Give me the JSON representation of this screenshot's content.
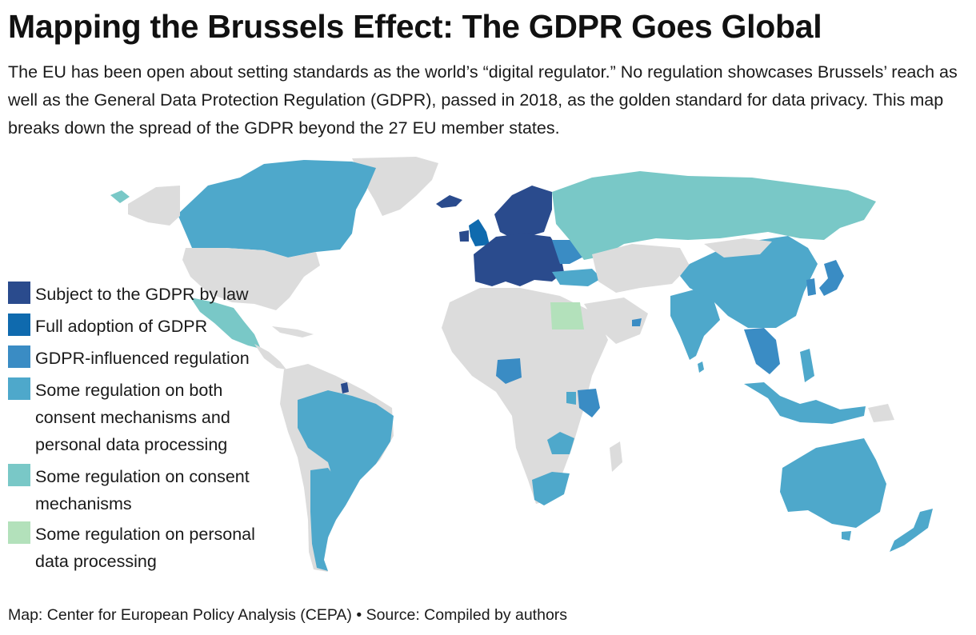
{
  "title": "Mapping the Brussels Effect: The GDPR Goes Global",
  "subtitle": "The EU has been open about setting standards as the world’s “digital regulator.” No regulation showcases Brussels’ reach as well as the General Data Protection Regulation (GDPR), passed in 2018, as the golden standard for data privacy. This map breaks down the spread of the GDPR beyond the 27 EU member states.",
  "colors": {
    "subject_by_law": "#2a4b8d",
    "full_adoption": "#0f6aae",
    "gdpr_influenced": "#3a8cc4",
    "both_consent_processing": "#4ea8cb",
    "consent_mechanisms": "#79c8c7",
    "data_processing": "#b3e1bb",
    "no_data": "#dcdcdc"
  },
  "legend": [
    {
      "label": "Subject to the GDPR by law",
      "color": "#2a4b8d"
    },
    {
      "label": "Full adoption of GDPR",
      "color": "#0f6aae"
    },
    {
      "label": "GDPR-influenced regulation",
      "color": "#3a8cc4"
    },
    {
      "label": "Some regulation on both consent mechanisms and personal data processing",
      "color": "#4ea8cb"
    },
    {
      "label": "Some regulation on consent mechanisms",
      "color": "#79c8c7"
    },
    {
      "label": "Some regulation on personal data processing",
      "color": "#b3e1bb"
    }
  ],
  "footer": "Map: Center for European Policy Analysis (CEPA) • Source: Compiled by authors"
}
